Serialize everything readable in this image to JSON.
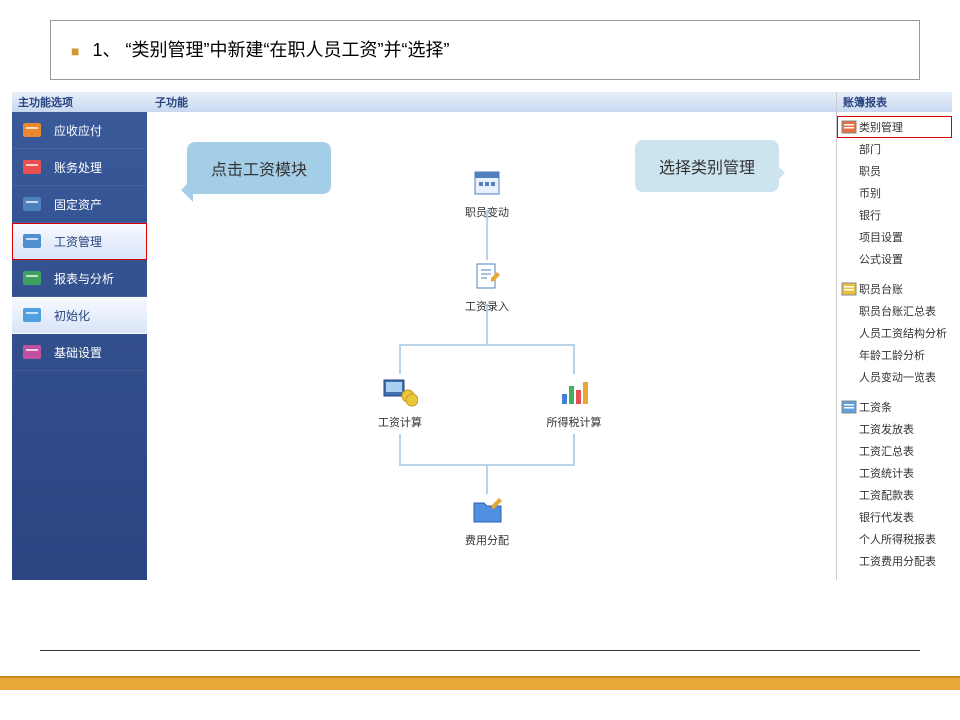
{
  "title": {
    "number": "1、",
    "text": "“类别管理”中新建“在职人员工资”并“选择”"
  },
  "sidebar": {
    "header": "主功能选项",
    "items": [
      {
        "label": "应收应付",
        "color": "#e88830"
      },
      {
        "label": "账务处理",
        "color": "#e85050"
      },
      {
        "label": "固定资产",
        "color": "#5080c0"
      },
      {
        "label": "工资管理",
        "color": "#5090d0",
        "active": true,
        "highlighted": true
      },
      {
        "label": "报表与分析",
        "color": "#40a060"
      },
      {
        "label": "初始化",
        "color": "#50a0e0",
        "active": true
      },
      {
        "label": "基础设置",
        "color": "#c050a0"
      }
    ]
  },
  "center": {
    "header": "子功能"
  },
  "callouts": {
    "click_module": "点击工资模块",
    "select_category": "选择类别管理"
  },
  "flow": {
    "node1": "职员变动",
    "node2": "工资录入",
    "node3": "工资计算",
    "node4": "所得税计算",
    "node5": "费用分配"
  },
  "right": {
    "header": "账簿报表",
    "group1": [
      {
        "label": "类别管理",
        "highlighted": true
      },
      {
        "label": "部门"
      },
      {
        "label": "职员"
      },
      {
        "label": "币别"
      },
      {
        "label": "银行"
      },
      {
        "label": "项目设置"
      },
      {
        "label": "公式设置"
      }
    ],
    "group2": [
      {
        "label": "职员台账"
      },
      {
        "label": "职员台账汇总表"
      },
      {
        "label": "人员工资结构分析"
      },
      {
        "label": "年龄工龄分析"
      },
      {
        "label": "人员变动一览表"
      }
    ],
    "group3": [
      {
        "label": "工资条"
      },
      {
        "label": "工资发放表"
      },
      {
        "label": "工资汇总表"
      },
      {
        "label": "工资统计表"
      },
      {
        "label": "工资配款表"
      },
      {
        "label": "银行代发表"
      },
      {
        "label": "个人所得税报表"
      },
      {
        "label": "工资费用分配表"
      }
    ]
  },
  "colors": {
    "accent": "#e8a838",
    "sidebar_bg": "#2a4580",
    "callout_bg": "#a4cde8"
  }
}
